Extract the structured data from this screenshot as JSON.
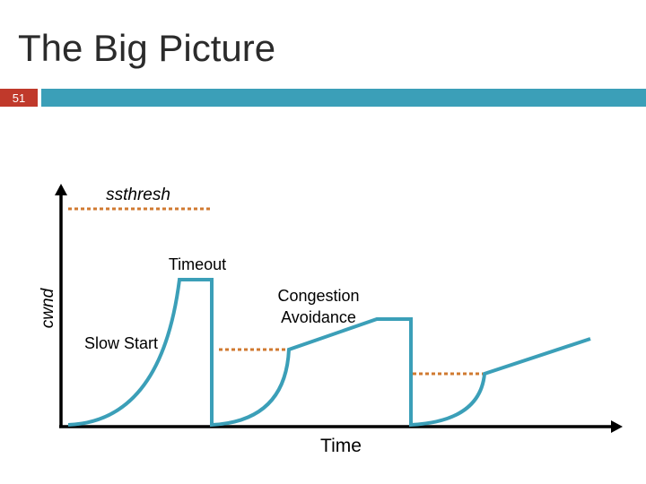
{
  "slide": {
    "title": "The Big Picture",
    "number": "51"
  },
  "diagram": {
    "y_axis_label": "cwnd",
    "x_axis_label": "Time",
    "annotations": {
      "ssthresh": "ssthresh",
      "timeout": "Timeout",
      "congestion_avoidance_line1": "Congestion",
      "congestion_avoidance_line2": "Avoidance",
      "slow_start": "Slow Start"
    },
    "colors": {
      "curve": "#3b9fb8",
      "threshold": "#d07a30",
      "axis": "#000000",
      "number_box": "#c0392b",
      "header_bar": "#3b9fb8"
    }
  }
}
